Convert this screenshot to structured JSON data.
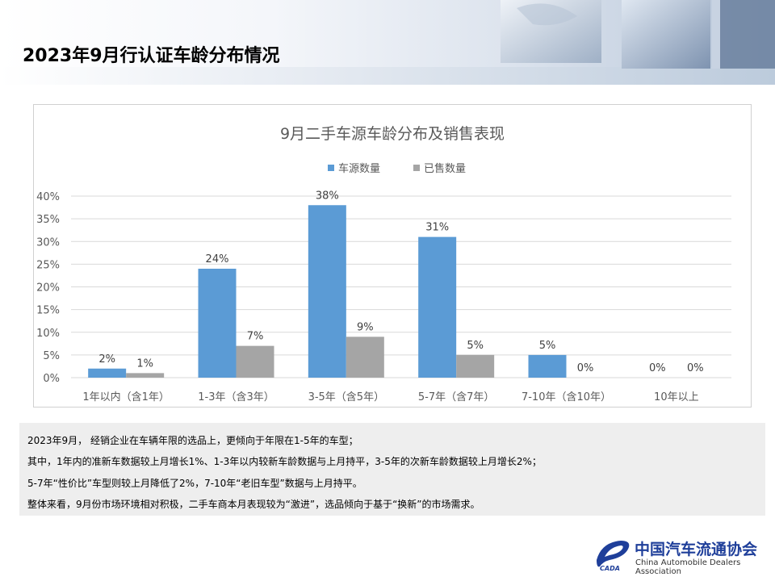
{
  "slide": {
    "title": "2023年9月行认证车龄分布情况"
  },
  "chart_data": {
    "type": "bar",
    "title": "9月二手车源车龄分布及销售表现",
    "categories": [
      "1年以内（含1年）",
      "1-3年（含3年）",
      "3-5年（含5年）",
      "5-7年（含7年）",
      "7-10年（含10年）",
      "10年以上"
    ],
    "series": [
      {
        "name": "车源数量",
        "values": [
          2,
          24,
          38,
          31,
          5,
          0
        ],
        "labels": [
          "2%",
          "24%",
          "38%",
          "31%",
          "5%",
          "0%"
        ],
        "color": "#5b9bd5"
      },
      {
        "name": "已售数量",
        "values": [
          1,
          7,
          9,
          5,
          0,
          0
        ],
        "labels": [
          "1%",
          "7%",
          "9%",
          "5%",
          "0%",
          "0%"
        ],
        "color": "#a5a5a5"
      }
    ],
    "y_unit": "%",
    "ylim": [
      0,
      40
    ],
    "yticks": [
      0,
      5,
      10,
      15,
      20,
      25,
      30,
      35,
      40
    ],
    "ytick_labels": [
      "0%",
      "5%",
      "10%",
      "15%",
      "20%",
      "25%",
      "30%",
      "35%",
      "40%"
    ],
    "grid": true,
    "legend_position": "top"
  },
  "summary": {
    "lines": [
      "2023年9月， 经销企业在车辆年限的选品上，更倾向于年限在1-5年的车型；",
      "其中，1年内的准新车数据较上月增长1%、1-3年以内较新车龄数据与上月持平，3-5年的次新车龄数据较上月增长2%；",
      "5-7年“性价比”车型则较上月降低了2%，7-10年“老旧车型”数据与上月持平。",
      "整体来看，9月份市场环境相对积极，二手车商本月表现较为“激进”，选品倾向于基于“换新”的市场需求。"
    ]
  },
  "footer": {
    "org_name_cn": "中国汽车流通协会",
    "org_name_en": "China Automobile Dealers Association",
    "logo_text": "CADA"
  }
}
